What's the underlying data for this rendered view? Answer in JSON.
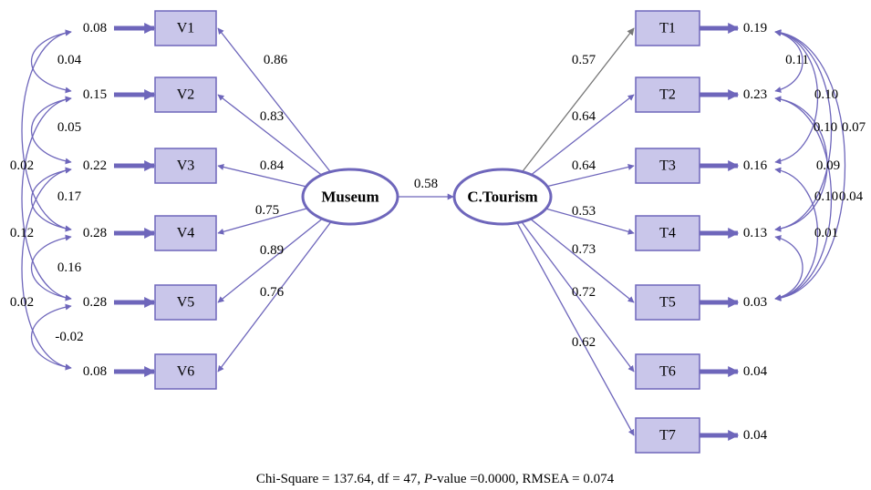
{
  "colors": {
    "box_fill": "#c9c6ea",
    "stroke": "#6e66bb",
    "arrow": "#6e66bb",
    "grey_arrow": "#777777"
  },
  "latents": {
    "museum": "Museum",
    "tourism": "C.Tourism",
    "path_coef": "0.58"
  },
  "museum_indicators": [
    {
      "label": "V1",
      "loading": "0.86",
      "error": "0.08"
    },
    {
      "label": "V2",
      "loading": "0.83",
      "error": "0.15"
    },
    {
      "label": "V3",
      "loading": "0.84",
      "error": "0.22"
    },
    {
      "label": "V4",
      "loading": "0.75",
      "error": "0.28"
    },
    {
      "label": "V5",
      "loading": "0.89",
      "error": "0.28"
    },
    {
      "label": "V6",
      "loading": "0.76",
      "error": "0.08"
    }
  ],
  "tourism_indicators": [
    {
      "label": "T1",
      "loading": "0.57",
      "error": "0.19"
    },
    {
      "label": "T2",
      "loading": "0.64",
      "error": "0.23"
    },
    {
      "label": "T3",
      "loading": "0.64",
      "error": "0.16"
    },
    {
      "label": "T4",
      "loading": "0.53",
      "error": "0.13"
    },
    {
      "label": "T5",
      "loading": "0.73",
      "error": "0.03"
    },
    {
      "label": "T6",
      "loading": "0.72",
      "error": "0.04"
    },
    {
      "label": "T7",
      "loading": "0.62",
      "error": "0.04"
    }
  ],
  "left_covariances": [
    {
      "from": "V1",
      "to": "V2",
      "value": "0.04"
    },
    {
      "from": "V2",
      "to": "V3",
      "value": "0.05"
    },
    {
      "from": "V1",
      "to": "V4",
      "value": "0.02"
    },
    {
      "from": "V3",
      "to": "V4",
      "value": "0.17"
    },
    {
      "from": "V2",
      "to": "V5",
      "value": "0.12"
    },
    {
      "from": "V4",
      "to": "V5",
      "value": "0.16"
    },
    {
      "from": "V3",
      "to": "V6",
      "value": "0.02"
    },
    {
      "from": "V5",
      "to": "V6",
      "value": "-0.02"
    }
  ],
  "right_covariances": [
    {
      "from": "T1",
      "to": "T2",
      "value": "0.11"
    },
    {
      "from": "T1",
      "to": "T3",
      "value": "0.10"
    },
    {
      "from": "T1",
      "to": "T4",
      "value": "0.10"
    },
    {
      "from": "T1",
      "to": "T5",
      "value": "0.07"
    },
    {
      "from": "T2",
      "to": "T4",
      "value": "0.09"
    },
    {
      "from": "T2",
      "to": "T5",
      "value": "0.04"
    },
    {
      "from": "T3",
      "to": "T5",
      "value": "0.10"
    },
    {
      "from": "T4",
      "to": "T5",
      "value": "0.01"
    }
  ],
  "fit_stats": {
    "chi_prefix": "Chi-Square = 137.64, df = 47, ",
    "p_italic": "P",
    "p_rest": "-value =0.0000, RMSEA = 0.074"
  }
}
